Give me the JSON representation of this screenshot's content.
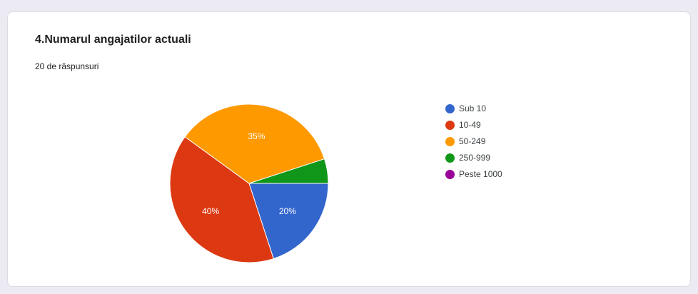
{
  "card": {
    "title": "4.Numarul angajatilor actuali",
    "subtitle": "20 de răspunsuri"
  },
  "chart_data": {
    "type": "pie",
    "categories": [
      "Sub 10",
      "10-49",
      "50-249",
      "250-999",
      "Peste 1000"
    ],
    "values": [
      20,
      40,
      35,
      5,
      0
    ],
    "data_labels": [
      "20%",
      "40%",
      "35%",
      "",
      ""
    ],
    "colors": [
      "#3366cc",
      "#dc3912",
      "#ff9900",
      "#109618",
      "#990099"
    ],
    "legend_position": "right"
  }
}
